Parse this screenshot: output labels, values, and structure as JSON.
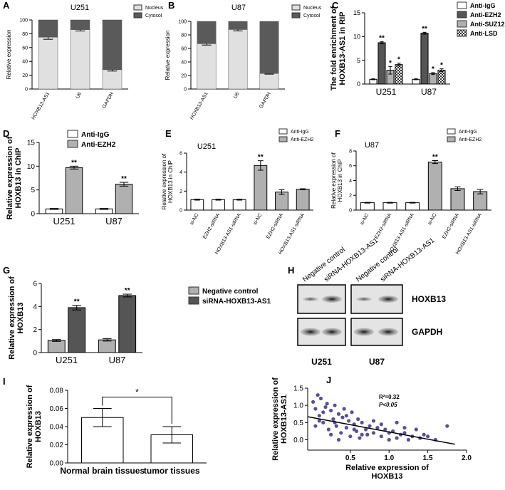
{
  "chart_data": [
    {
      "type": "stacked_bar",
      "panel": "A",
      "title": "U251",
      "ylabel": [
        "Relative expression"
      ],
      "categories": [
        "HOXB13-AS1",
        "U6",
        "GAPDH"
      ],
      "series": [
        {
          "name": "Nucleus",
          "color": "#e0e0e0",
          "values": [
            75,
            86,
            28
          ],
          "errors": [
            3,
            2,
            2
          ]
        },
        {
          "name": "Cytosol",
          "color": "#5a5a5a",
          "values": [
            25,
            14,
            72
          ]
        }
      ],
      "ylim": [
        0,
        100
      ],
      "yticks": [
        0,
        20,
        40,
        60,
        80,
        100
      ]
    },
    {
      "type": "stacked_bar",
      "panel": "B",
      "title": "U87",
      "ylabel": [
        "Relative expression"
      ],
      "categories": [
        "HOXB13-AS1",
        "U6",
        "GAPDH"
      ],
      "series": [
        {
          "name": "Nucleus",
          "color": "#e0e0e0",
          "values": [
            67,
            88,
            23
          ],
          "errors": [
            2,
            2,
            1
          ]
        },
        {
          "name": "Cytosol",
          "color": "#5a5a5a",
          "values": [
            33,
            12,
            77
          ]
        }
      ],
      "ylim": [
        0,
        100
      ],
      "yticks": [
        0,
        20,
        40,
        60,
        80,
        100
      ]
    },
    {
      "type": "bar",
      "panel": "C",
      "ylabel": [
        "The fold enrichment of",
        "HOXB13-AS1 in RIP"
      ],
      "categories": [
        "U251",
        "U87"
      ],
      "series": [
        {
          "name": "Anti-IgG",
          "color": "#ffffff",
          "values": [
            1.0,
            1.0
          ],
          "errors": [
            0.1,
            0.1
          ]
        },
        {
          "name": "Anti-EZH2",
          "color": "#555555",
          "values": [
            8.7,
            10.7
          ],
          "errors": [
            0.2,
            0.2
          ],
          "significance": [
            "**",
            "**"
          ]
        },
        {
          "name": "Anti-SUZ12",
          "color": "#b0b0b0",
          "values": [
            2.9,
            2.2
          ],
          "errors": [
            0.8,
            0.2
          ],
          "significance": [
            "*",
            "*"
          ]
        },
        {
          "name": "Anti-LSD",
          "color": "#333333",
          "pattern": "checker",
          "values": [
            4.1,
            2.9
          ],
          "errors": [
            0.3,
            0.3
          ],
          "significance": [
            "*",
            "*"
          ]
        }
      ],
      "ylim": [
        0,
        15
      ],
      "yticks": [
        0,
        5,
        10,
        15
      ]
    },
    {
      "type": "bar",
      "panel": "D",
      "ylabel": [
        "Relative expression of",
        "HOXB13 in ChIP"
      ],
      "categories": [
        "U251",
        "U87"
      ],
      "series": [
        {
          "name": "Anti-IgG",
          "color": "#ffffff",
          "values": [
            1.0,
            1.0
          ],
          "errors": [
            0.1,
            0.1
          ]
        },
        {
          "name": "Anti-EZH2",
          "color": "#b0b0b0",
          "values": [
            9.7,
            6.2
          ],
          "errors": [
            0.3,
            0.4
          ],
          "significance": [
            "**",
            "**"
          ]
        }
      ],
      "ylim": [
        0,
        15
      ],
      "yticks": [
        0,
        5,
        10,
        15
      ]
    },
    {
      "type": "bar",
      "panel": "E",
      "title": "U251",
      "ylabel": [
        "Relative expression of",
        "HOXB13 in ChIP"
      ],
      "categories": [
        "si-NC",
        "EZH2-siRNA",
        "HOXB13-AS1-siRNA",
        "si-NC",
        "EZH2-siRNA",
        "HOXB13-AS1-siRNA"
      ],
      "series": [
        {
          "name": "Anti-IgG",
          "color": "#ffffff",
          "values": [
            1.1,
            1.1,
            1.1,
            null,
            null,
            null
          ],
          "errors": [
            0.05,
            0.05,
            0.05,
            null,
            null,
            null
          ]
        },
        {
          "name": "Anti-EZH2",
          "color": "#b0b0b0",
          "values": [
            null,
            null,
            null,
            4.7,
            1.9,
            2.2
          ],
          "errors": [
            null,
            null,
            null,
            0.5,
            0.25,
            0.05
          ],
          "significance": [
            null,
            null,
            null,
            "**",
            null,
            null
          ]
        }
      ],
      "ylim": [
        0,
        6
      ],
      "yticks": [
        0,
        2,
        4,
        6
      ]
    },
    {
      "type": "bar",
      "panel": "F",
      "title": "U87",
      "ylabel": [
        "Relative expression of",
        "HOXB13 in ChIP"
      ],
      "categories": [
        "si-NC",
        "EZH2-siRNA",
        "HOXB13-AS1-siRNA",
        "si-NC",
        "EZH2-siRNA",
        "HOXB13-AS1-siRNA"
      ],
      "series": [
        {
          "name": "Anti-IgG",
          "color": "#ffffff",
          "values": [
            1.0,
            1.0,
            1.0,
            null,
            null,
            null
          ],
          "errors": [
            0.05,
            0.05,
            0.05,
            null,
            null,
            null
          ]
        },
        {
          "name": "Anti-EZH2",
          "color": "#b0b0b0",
          "values": [
            null,
            null,
            null,
            6.5,
            2.9,
            2.5
          ],
          "errors": [
            null,
            null,
            null,
            0.2,
            0.25,
            0.3
          ],
          "significance": [
            null,
            null,
            null,
            "**",
            null,
            null
          ]
        }
      ],
      "ylim": [
        0,
        8
      ],
      "yticks": [
        0,
        2,
        4,
        6,
        8
      ]
    },
    {
      "type": "bar",
      "panel": "G",
      "ylabel": [
        "Relative expression of",
        "HOXB13"
      ],
      "categories": [
        "U251",
        "U87"
      ],
      "series": [
        {
          "name": "Negative control",
          "color": "#b0b0b0",
          "values": [
            1.05,
            1.1
          ],
          "errors": [
            0.08,
            0.1
          ]
        },
        {
          "name": "siRNA-HOXB13-AS1",
          "color": "#555555",
          "values": [
            3.9,
            4.95
          ],
          "errors": [
            0.2,
            0.12
          ],
          "significance": [
            "**",
            "**"
          ]
        }
      ],
      "ylim": [
        0,
        6
      ],
      "yticks": [
        0,
        2,
        4,
        6
      ]
    },
    {
      "type": "bar",
      "panel": "I",
      "ylabel": [
        "Relative expression of",
        "HOXB13"
      ],
      "categories": [
        "Normal brain tissues",
        "tumor tissues"
      ],
      "series": [
        {
          "color": "#ffffff",
          "values": [
            0.05,
            0.031
          ],
          "errors": [
            0.01,
            0.009
          ]
        }
      ],
      "comparison": "*",
      "ylim": [
        0,
        0.08
      ],
      "yticks": [
        {
          "value": 0,
          "label": "0.00"
        },
        0.02,
        0.04,
        0.06,
        0.08
      ]
    },
    {
      "type": "scatter",
      "panel": "J",
      "ylabel": [
        "Relative expression of",
        "HOXB13-AS1"
      ],
      "xlabel": [
        "Relative expression of",
        "HOXB13"
      ],
      "color": "#5b4f96",
      "x": [
        0.02,
        0.05,
        0.08,
        0.1,
        0.12,
        0.15,
        0.18,
        0.2,
        0.22,
        0.25,
        0.28,
        0.3,
        0.32,
        0.35,
        0.38,
        0.4,
        0.42,
        0.45,
        0.48,
        0.5,
        0.52,
        0.55,
        0.58,
        0.6,
        0.62,
        0.65,
        0.7,
        0.72,
        0.75,
        0.8,
        0.85,
        0.9,
        0.95,
        1.0,
        1.05,
        1.1,
        1.15,
        1.2,
        1.25,
        1.3,
        1.35,
        1.4,
        1.5,
        1.6,
        1.75,
        0.05,
        0.1,
        0.15,
        0.25,
        0.3,
        0.35,
        0.45,
        0.55,
        0.65,
        0.8,
        0.9,
        1.0,
        1.1,
        1.2,
        1.45
      ],
      "values": [
        1.1,
        0.9,
        1.3,
        0.7,
        1.2,
        0.5,
        0.95,
        1.05,
        0.3,
        0.85,
        0.6,
        1.0,
        0.4,
        0.75,
        0.2,
        0.65,
        0.9,
        0.35,
        0.55,
        0.1,
        0.8,
        0.45,
        0.25,
        0.6,
        0.05,
        0.5,
        0.3,
        0.15,
        0.4,
        0.2,
        0.35,
        0.1,
        0.3,
        0.0,
        0.25,
        0.05,
        0.15,
        0.2,
        0.0,
        0.1,
        0.3,
        0.05,
        0.1,
        0.0,
        0.4,
        0.4,
        0.55,
        0.8,
        0.15,
        0.5,
        0.0,
        0.7,
        0.3,
        0.15,
        0.55,
        0.45,
        0.2,
        0.5,
        0.35,
        0.15
      ],
      "fit": {
        "x": [
          -0.05,
          1.85
        ],
        "y": [
          0.67,
          -0.13
        ]
      },
      "annotations": [
        "R²=0.32",
        "P<0.05"
      ],
      "xlim": [
        -0.05,
        2.0
      ],
      "xticks": [
        0.5,
        {
          "value": 1,
          "label": "1.0"
        },
        1.5,
        {
          "value": 2,
          "label": "2.0"
        }
      ],
      "ylim": [
        -0.3,
        1.5
      ],
      "yticks": [
        {
          "value": 0,
          "label": "0.0"
        },
        0.5,
        {
          "value": 1,
          "label": "1.0"
        },
        1.5
      ]
    }
  ],
  "blot": {
    "panel": "H",
    "lanes": [
      "Negative control",
      "siRNA-HOXB13-AS1",
      "Negative control",
      "siRNA-HOXB13-AS1"
    ],
    "bands": [
      "HOXB13",
      "GAPDH"
    ],
    "cell_lines": [
      "U251",
      "U87"
    ]
  }
}
